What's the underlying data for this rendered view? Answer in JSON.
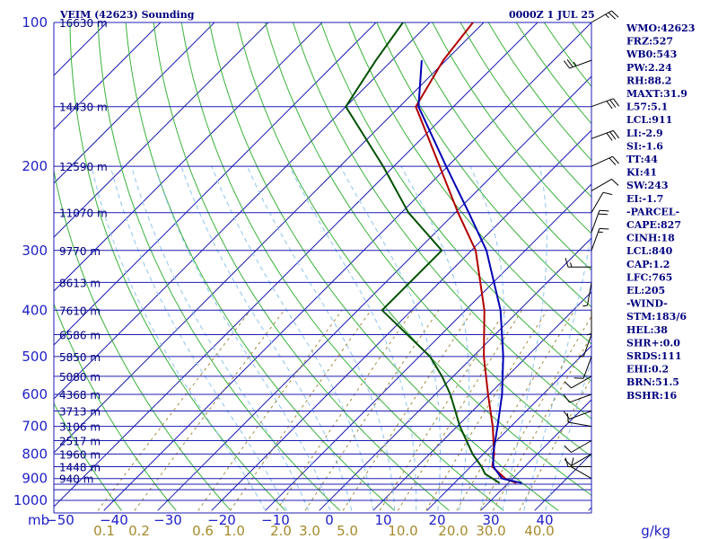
{
  "header": {
    "station": "VEIM (42623) Sounding",
    "time": "0000Z  1 JUL 25"
  },
  "stats": [
    "WMO:42623",
    "FRZ:527",
    "WB0:543",
    "PW:2.24",
    "RH:88.2",
    "MAXT:31.9",
    "L57:5.1",
    "LCL:911",
    "LI:-2.9",
    "SI:-1.6",
    "TT:44",
    "KI:41",
    "SW:243",
    "EI:-1.7",
    "-PARCEL-",
    "CAPE:827",
    "CINH:18",
    "LCL:840",
    "CAP:1.2",
    "LFC:765",
    "EL:205",
    "-WIND-",
    "STM:183/6",
    "HEL:38",
    "SHR+:0.0",
    "SRDS:111",
    "EHI:0.2",
    "BRN:51.5",
    "BSHR:16"
  ],
  "units": {
    "pressure": "mb",
    "mixing_ratio": "g/kg"
  },
  "chart_data": {
    "type": "line",
    "title": "VEIM (42623) Sounding",
    "xlabel": "",
    "ylabel": "",
    "ylim": [
      1000,
      100
    ],
    "y_scale": "log",
    "skew_t": true,
    "grid": true,
    "colors": {
      "isobar": "#1c1cb4",
      "isotherm": "#1c1cb4",
      "dry_adiabat": "#39b239",
      "moist_adiabat": "#8ec4ee",
      "mixing_ratio": "#a08a3c",
      "temperature": "#b00000",
      "dewpoint": "#005000",
      "parcel": "#0000b4",
      "wind_barb": "#000000"
    },
    "pressure_labels": [
      100,
      200,
      300,
      400,
      500,
      600,
      700,
      800,
      900,
      1000
    ],
    "isobars": [
      100,
      150,
      200,
      250,
      300,
      350,
      400,
      450,
      500,
      550,
      600,
      650,
      700,
      750,
      800,
      850,
      900,
      925,
      950,
      1000
    ],
    "temperature_ticks": [
      -50,
      -40,
      -30,
      -20,
      -10,
      0,
      10,
      20,
      30,
      40
    ],
    "temperature_tick_labels": [
      "−50",
      "−40",
      "−30",
      "−20",
      "−10",
      "0",
      "10",
      "20",
      "30",
      "40"
    ],
    "mixing_ratio_labels": [
      "0.1",
      "0.2",
      "0.6",
      "1.0",
      "2.0",
      "3.0",
      "5.0",
      "10.0",
      "20.0",
      "30.0",
      "40.0"
    ],
    "height_labels": [
      {
        "p": 100,
        "label": "16630 m"
      },
      {
        "p": 150,
        "label": "14430 m"
      },
      {
        "p": 200,
        "label": "12590 m"
      },
      {
        "p": 250,
        "label": "11070 m"
      },
      {
        "p": 300,
        "label": "9770 m"
      },
      {
        "p": 350,
        "label": "8613 m"
      },
      {
        "p": 400,
        "label": "7610 m"
      },
      {
        "p": 450,
        "label": "6586 m"
      },
      {
        "p": 500,
        "label": "5850 m"
      },
      {
        "p": 550,
        "label": "5080 m"
      },
      {
        "p": 600,
        "label": "4368 m"
      },
      {
        "p": 650,
        "label": "3713 m"
      },
      {
        "p": 700,
        "label": "3106 m"
      },
      {
        "p": 750,
        "label": "2517 m"
      },
      {
        "p": 800,
        "label": "1960 m"
      },
      {
        "p": 850,
        "label": "1448 m"
      },
      {
        "p": 900,
        "label": "940 m"
      }
    ],
    "series": [
      {
        "key": "temperature",
        "points": [
          [
            920,
            31.5
          ],
          [
            900,
            28.6
          ],
          [
            850,
            24.0
          ],
          [
            800,
            22.0
          ],
          [
            700,
            16.6
          ],
          [
            600,
            9.8
          ],
          [
            500,
            2.0
          ],
          [
            400,
            -6.5
          ],
          [
            300,
            -19.2
          ],
          [
            250,
            -29.5
          ],
          [
            200,
            -41.5
          ],
          [
            150,
            -57.0
          ],
          [
            120,
            -60.5
          ],
          [
            100,
            -62.0
          ]
        ]
      },
      {
        "key": "dewpoint",
        "points": [
          [
            920,
            28.4
          ],
          [
            880,
            24.0
          ],
          [
            850,
            22.0
          ],
          [
            800,
            18.0
          ],
          [
            700,
            10.5
          ],
          [
            600,
            2.8
          ],
          [
            550,
            -2.1
          ],
          [
            500,
            -8.0
          ],
          [
            400,
            -25.5
          ],
          [
            300,
            -25.5
          ],
          [
            250,
            -38.7
          ],
          [
            200,
            -52.0
          ],
          [
            150,
            -70.0
          ],
          [
            120,
            -73.0
          ],
          [
            100,
            -75.0
          ]
        ]
      },
      {
        "key": "parcel",
        "points": [
          [
            920,
            32.5
          ],
          [
            900,
            28.0
          ],
          [
            850,
            24.2
          ],
          [
            800,
            21.8
          ],
          [
            700,
            17.5
          ],
          [
            600,
            12.4
          ],
          [
            500,
            5.6
          ],
          [
            400,
            -3.5
          ],
          [
            300,
            -17.2
          ],
          [
            250,
            -27.5
          ],
          [
            200,
            -40.3
          ],
          [
            150,
            -56.5
          ],
          [
            120,
            -64.5
          ]
        ]
      }
    ],
    "wind_barbs": [
      {
        "p": 100,
        "dir": 60,
        "kt": 25
      },
      {
        "p": 120,
        "dir": 250,
        "kt": 25
      },
      {
        "p": 150,
        "dir": 70,
        "kt": 30
      },
      {
        "p": 175,
        "dir": 70,
        "kt": 30
      },
      {
        "p": 200,
        "dir": 65,
        "kt": 20
      },
      {
        "p": 225,
        "dir": 60,
        "kt": 10
      },
      {
        "p": 250,
        "dir": 30,
        "kt": 10
      },
      {
        "p": 275,
        "dir": 20,
        "kt": 20
      },
      {
        "p": 300,
        "dir": 20,
        "kt": 15
      },
      {
        "p": 325,
        "dir": 270,
        "kt": 15
      },
      {
        "p": 350,
        "dir": 190,
        "kt": 5
      },
      {
        "p": 400,
        "dir": 180,
        "kt": 5
      },
      {
        "p": 450,
        "dir": 200,
        "kt": 5
      },
      {
        "p": 500,
        "dir": 200,
        "kt": 10
      },
      {
        "p": 550,
        "dir": 240,
        "kt": 10
      },
      {
        "p": 600,
        "dir": 250,
        "kt": 10
      },
      {
        "p": 650,
        "dir": 250,
        "kt": 10
      },
      {
        "p": 700,
        "dir": 280,
        "kt": 10
      },
      {
        "p": 750,
        "dir": 240,
        "kt": 10
      },
      {
        "p": 800,
        "dir": 240,
        "kt": 10
      },
      {
        "p": 850,
        "dir": 270,
        "kt": 10
      },
      {
        "p": 900,
        "dir": 300,
        "kt": 10
      }
    ]
  }
}
